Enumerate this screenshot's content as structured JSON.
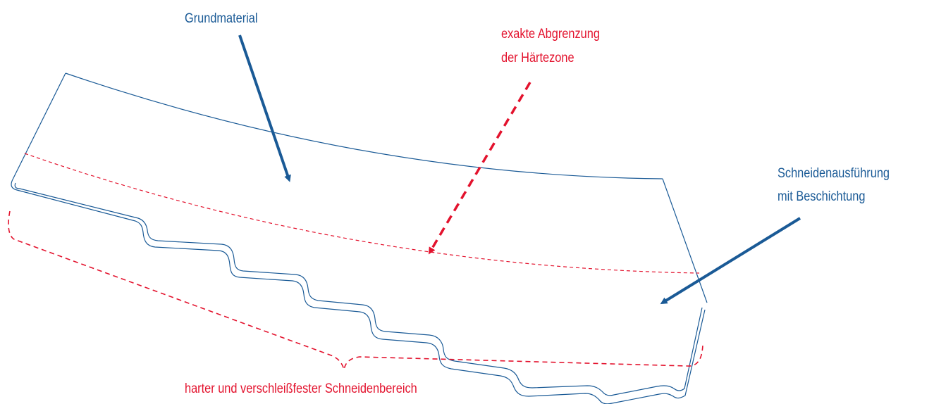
{
  "labels": {
    "base_material": "Grundmaterial",
    "hardness_zone": [
      "exakte Abgrenzung",
      "der Härtezone"
    ],
    "coated_edge": [
      "Schneidenausführung",
      "mit Beschichtung"
    ],
    "hard_edge_area": "harter und verschleißfester Schneidenbereich"
  },
  "colors": {
    "outline": "#1a5a96",
    "arrow_blue": "#1a5a96",
    "hardness_red": "#e3122d"
  }
}
